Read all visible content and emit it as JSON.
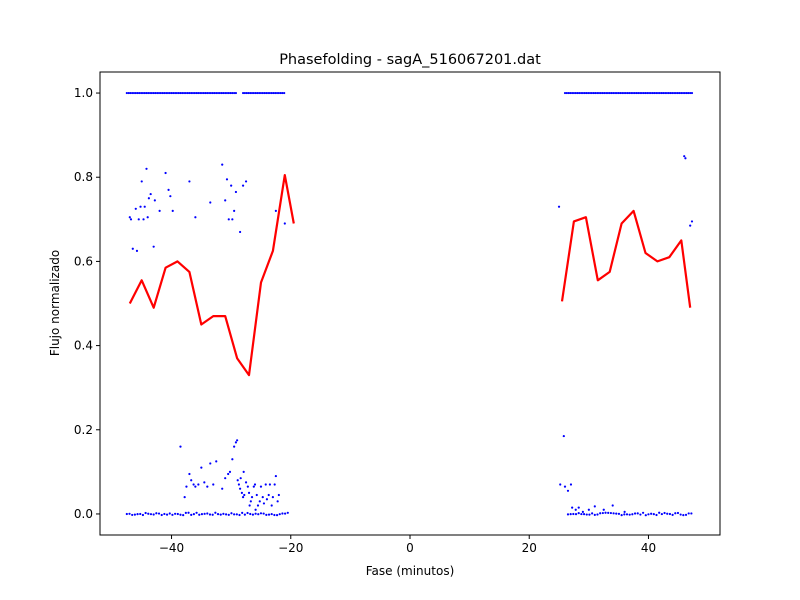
{
  "chart_data": {
    "type": "scatter",
    "title": "Phasefolding - sagA_516067201.dat",
    "xlabel": "Fase (minutos)",
    "ylabel": "Flujo normalizado",
    "xlim": [
      -52,
      52
    ],
    "ylim": [
      -0.05,
      1.05
    ],
    "xticks": [
      -40,
      -20,
      0,
      20,
      40
    ],
    "yticks": [
      0.0,
      0.2,
      0.4,
      0.6,
      0.8,
      1.0
    ],
    "grid": false,
    "legend": "none",
    "colors": {
      "points": "#0000ff",
      "line": "#ff0000",
      "axes": "#000000"
    },
    "series": [
      {
        "kind": "points",
        "generated_ranges": [
          {
            "y": 1.0,
            "x_from": -47.5,
            "x_to": -29.2,
            "step": 0.3
          },
          {
            "y": 1.0,
            "x_from": -28.0,
            "x_to": -21.0,
            "step": 0.3
          },
          {
            "y": 1.0,
            "x_from": 26.0,
            "x_to": 47.5,
            "step": 0.3
          },
          {
            "y": 0.0,
            "x_from": -47.5,
            "x_to": -20.5,
            "step": 0.45,
            "jitter": 0.003
          },
          {
            "y": 0.0,
            "x_from": 26.5,
            "x_to": 47.5,
            "step": 0.45,
            "jitter": 0.003
          }
        ],
        "points": [
          [
            -47.0,
            0.705
          ],
          [
            -46.8,
            0.7
          ],
          [
            -46.5,
            0.63
          ],
          [
            -46.0,
            0.725
          ],
          [
            -45.8,
            0.625
          ],
          [
            -45.5,
            0.7
          ],
          [
            -45.2,
            0.73
          ],
          [
            -45.0,
            0.79
          ],
          [
            -44.7,
            0.7
          ],
          [
            -44.5,
            0.73
          ],
          [
            -44.2,
            0.82
          ],
          [
            -44.0,
            0.705
          ],
          [
            -43.8,
            0.75
          ],
          [
            -43.5,
            0.76
          ],
          [
            -43.0,
            0.635
          ],
          [
            -42.8,
            0.745
          ],
          [
            -42.0,
            0.72
          ],
          [
            -41.0,
            0.81
          ],
          [
            -40.5,
            0.77
          ],
          [
            -40.2,
            0.755
          ],
          [
            -39.8,
            0.72
          ],
          [
            -37.0,
            0.79
          ],
          [
            -36.0,
            0.705
          ],
          [
            -33.5,
            0.74
          ],
          [
            -31.5,
            0.83
          ],
          [
            -31.0,
            0.745
          ],
          [
            -30.7,
            0.795
          ],
          [
            -30.4,
            0.7
          ],
          [
            -30.0,
            0.78
          ],
          [
            -29.8,
            0.7
          ],
          [
            -29.5,
            0.72
          ],
          [
            -29.2,
            0.765
          ],
          [
            -28.5,
            0.67
          ],
          [
            -28.0,
            0.78
          ],
          [
            -27.5,
            0.79
          ],
          [
            -22.5,
            0.72
          ],
          [
            -21.0,
            0.69
          ],
          [
            25.0,
            0.73
          ],
          [
            46.0,
            0.85
          ],
          [
            46.2,
            0.845
          ],
          [
            47.0,
            0.685
          ],
          [
            47.3,
            0.695
          ],
          [
            -38.5,
            0.16
          ],
          [
            -37.8,
            0.04
          ],
          [
            -37.5,
            0.065
          ],
          [
            -37.0,
            0.095
          ],
          [
            -36.7,
            0.08
          ],
          [
            -36.3,
            0.07
          ],
          [
            -36.0,
            0.065
          ],
          [
            -35.5,
            0.07
          ],
          [
            -35.0,
            0.11
          ],
          [
            -34.5,
            0.075
          ],
          [
            -34.0,
            0.065
          ],
          [
            -33.5,
            0.12
          ],
          [
            -33.0,
            0.07
          ],
          [
            -32.5,
            0.125
          ],
          [
            -31.5,
            0.06
          ],
          [
            -31.0,
            0.085
          ],
          [
            -30.5,
            0.095
          ],
          [
            -30.2,
            0.1
          ],
          [
            -29.8,
            0.13
          ],
          [
            -29.5,
            0.16
          ],
          [
            -29.2,
            0.17
          ],
          [
            -29.0,
            0.175
          ],
          [
            -28.7,
            0.07
          ],
          [
            -28.5,
            0.06
          ],
          [
            -28.2,
            0.05
          ],
          [
            -28.0,
            0.04
          ],
          [
            -27.8,
            0.045
          ],
          [
            -27.5,
            0.075
          ],
          [
            -27.2,
            0.065
          ],
          [
            -27.0,
            0.05
          ],
          [
            -26.7,
            0.03
          ],
          [
            -26.5,
            0.04
          ],
          [
            -26.2,
            0.065
          ],
          [
            -26.0,
            0.07
          ],
          [
            -25.7,
            0.045
          ],
          [
            -25.5,
            0.02
          ],
          [
            -25.2,
            0.03
          ],
          [
            -25.0,
            0.065
          ],
          [
            -24.7,
            0.04
          ],
          [
            -24.5,
            0.025
          ],
          [
            -24.2,
            0.07
          ],
          [
            -24.0,
            0.035
          ],
          [
            -23.7,
            0.045
          ],
          [
            -23.5,
            0.07
          ],
          [
            -23.2,
            0.02
          ],
          [
            -23.0,
            0.04
          ],
          [
            -22.7,
            0.07
          ],
          [
            -22.5,
            0.09
          ],
          [
            -22.2,
            0.03
          ],
          [
            -22.0,
            0.045
          ],
          [
            -28.9,
            0.08
          ],
          [
            -28.4,
            0.085
          ],
          [
            -27.9,
            0.1
          ],
          [
            -26.9,
            0.02
          ],
          [
            -25.9,
            0.01
          ],
          [
            25.2,
            0.07
          ],
          [
            25.8,
            0.185
          ],
          [
            26.0,
            0.065
          ],
          [
            26.5,
            0.055
          ],
          [
            27.0,
            0.07
          ],
          [
            27.2,
            0.015
          ],
          [
            27.8,
            0.01
          ],
          [
            28.3,
            0.015
          ],
          [
            29.0,
            0.005
          ],
          [
            30.0,
            0.01
          ],
          [
            31.0,
            0.018
          ],
          [
            32.5,
            0.01
          ],
          [
            34.0,
            0.02
          ],
          [
            36.0,
            0.005
          ]
        ]
      },
      {
        "kind": "line",
        "x": [
          -47.0,
          -45.0,
          -43.0,
          -41.0,
          -39.0,
          -37.0,
          -35.0,
          -33.0,
          -31.0,
          -29.0,
          -27.0,
          -25.0,
          -23.0,
          -21.0,
          -19.5
        ],
        "values": [
          0.5,
          0.555,
          0.49,
          0.585,
          0.6,
          0.575,
          0.45,
          0.47,
          0.47,
          0.37,
          0.33,
          0.55,
          0.625,
          0.805,
          0.69
        ]
      },
      {
        "kind": "line",
        "x": [
          25.5,
          27.5,
          29.5,
          31.5,
          33.5,
          35.5,
          37.5,
          39.5,
          41.5,
          43.5,
          45.5,
          47.0
        ],
        "values": [
          0.505,
          0.695,
          0.705,
          0.555,
          0.575,
          0.69,
          0.72,
          0.62,
          0.6,
          0.61,
          0.65,
          0.49
        ]
      }
    ]
  }
}
